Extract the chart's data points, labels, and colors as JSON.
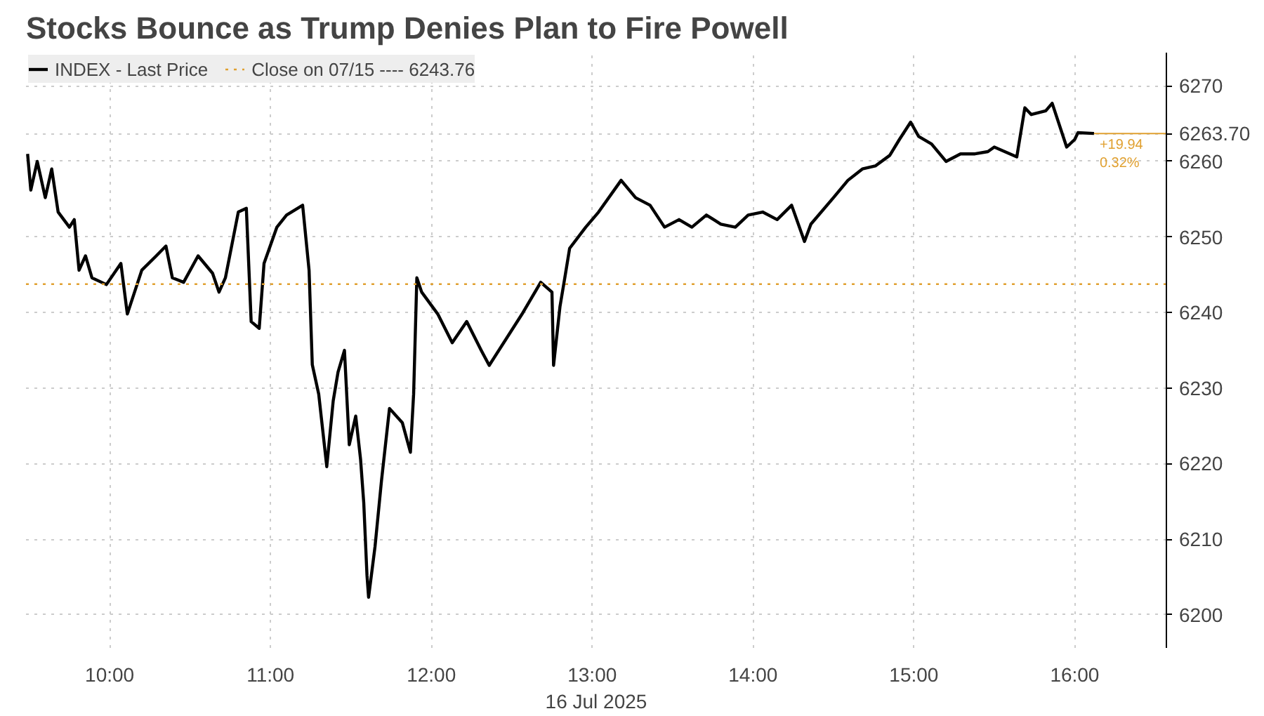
{
  "chart_data": {
    "type": "line",
    "title": "Stocks Bounce as Trump Denies Plan to Fire Powell",
    "xlabel": "16 Jul 2025",
    "series": [
      {
        "name": "INDEX - Last Price",
        "color": "#000000",
        "x": [
          9.49,
          9.51,
          9.55,
          9.6,
          9.64,
          9.68,
          9.75,
          9.78,
          9.81,
          9.85,
          9.89,
          9.98,
          10.07,
          10.11,
          10.2,
          10.29,
          10.35,
          10.39,
          10.46,
          10.55,
          10.64,
          10.68,
          10.72,
          10.8,
          10.85,
          10.88,
          10.93,
          10.96,
          11.04,
          11.1,
          11.2,
          11.24,
          11.26,
          11.3,
          11.35,
          11.39,
          11.42,
          11.46,
          11.49,
          11.53,
          11.56,
          11.58,
          11.6,
          11.61,
          11.65,
          11.69,
          11.74,
          11.82,
          11.87,
          11.89,
          11.91,
          11.94,
          12.04,
          12.13,
          12.22,
          12.31,
          12.36,
          12.57,
          12.68,
          12.75,
          12.76,
          12.8,
          12.83,
          12.86,
          12.96,
          13.04,
          13.18,
          13.27,
          13.36,
          13.45,
          13.54,
          13.62,
          13.71,
          13.8,
          13.89,
          13.97,
          14.06,
          14.15,
          14.24,
          14.32,
          14.36,
          14.5,
          14.59,
          14.68,
          14.76,
          14.85,
          14.91,
          14.98,
          15.03,
          15.11,
          15.2,
          15.29,
          15.38,
          15.46,
          15.5,
          15.64,
          15.69,
          15.73,
          15.82,
          15.86,
          15.95,
          16.0,
          16.02,
          16.12
        ],
        "values": [
          6261.0,
          6256.2,
          6260.0,
          6255.2,
          6259.0,
          6253.3,
          6251.3,
          6252.3,
          6245.6,
          6247.5,
          6244.6,
          6243.7,
          6246.5,
          6239.8,
          6245.6,
          6247.5,
          6248.8,
          6244.6,
          6244.0,
          6247.5,
          6245.2,
          6242.7,
          6244.6,
          6253.3,
          6253.8,
          6238.8,
          6237.9,
          6246.5,
          6251.3,
          6252.9,
          6254.2,
          6245.6,
          6233.1,
          6229.2,
          6219.6,
          6228.3,
          6232.1,
          6235.0,
          6222.5,
          6226.3,
          6220.6,
          6214.8,
          6205.2,
          6202.3,
          6209.0,
          6217.7,
          6227.3,
          6225.4,
          6221.5,
          6229.2,
          6244.6,
          6242.7,
          6239.8,
          6236.0,
          6238.8,
          6235.0,
          6233.0,
          6240.0,
          6244.0,
          6242.7,
          6233.0,
          6240.8,
          6244.6,
          6248.5,
          6251.3,
          6253.3,
          6257.5,
          6255.2,
          6254.2,
          6251.3,
          6252.3,
          6251.3,
          6252.9,
          6251.7,
          6251.3,
          6252.9,
          6253.3,
          6252.3,
          6254.2,
          6249.4,
          6251.7,
          6255.2,
          6257.5,
          6259.0,
          6259.4,
          6260.8,
          6262.9,
          6265.2,
          6263.3,
          6262.3,
          6260.0,
          6261.0,
          6261.0,
          6261.3,
          6261.9,
          6260.6,
          6267.1,
          6266.2,
          6266.7,
          6267.7,
          6261.9,
          6262.9,
          6263.8,
          6263.7
        ]
      }
    ],
    "xlim": [
      9.48,
      16.57
    ],
    "ylim": [
      6195.6,
      6274.4
    ],
    "xticks": [
      {
        "value": 10,
        "label": "10:00"
      },
      {
        "value": 11,
        "label": "11:00"
      },
      {
        "value": 12,
        "label": "12:00"
      },
      {
        "value": 13,
        "label": "13:00"
      },
      {
        "value": 14,
        "label": "14:00"
      },
      {
        "value": 15,
        "label": "15:00"
      },
      {
        "value": 16,
        "label": "16:00"
      }
    ],
    "yticks": [
      6200,
      6210,
      6220,
      6230,
      6240,
      6250,
      6260,
      {
        "value": 6263.7,
        "label": "6263.70"
      },
      6270
    ],
    "ref_lines": [
      {
        "axis": "y",
        "value": 6243.76,
        "label": "Close on 07/15 ---- 6243.76",
        "color": "#e0a030",
        "line_style": "dotted"
      }
    ],
    "annotations": [
      "+19.94",
      "0.32%"
    ],
    "grid": true,
    "legend": "top left"
  }
}
